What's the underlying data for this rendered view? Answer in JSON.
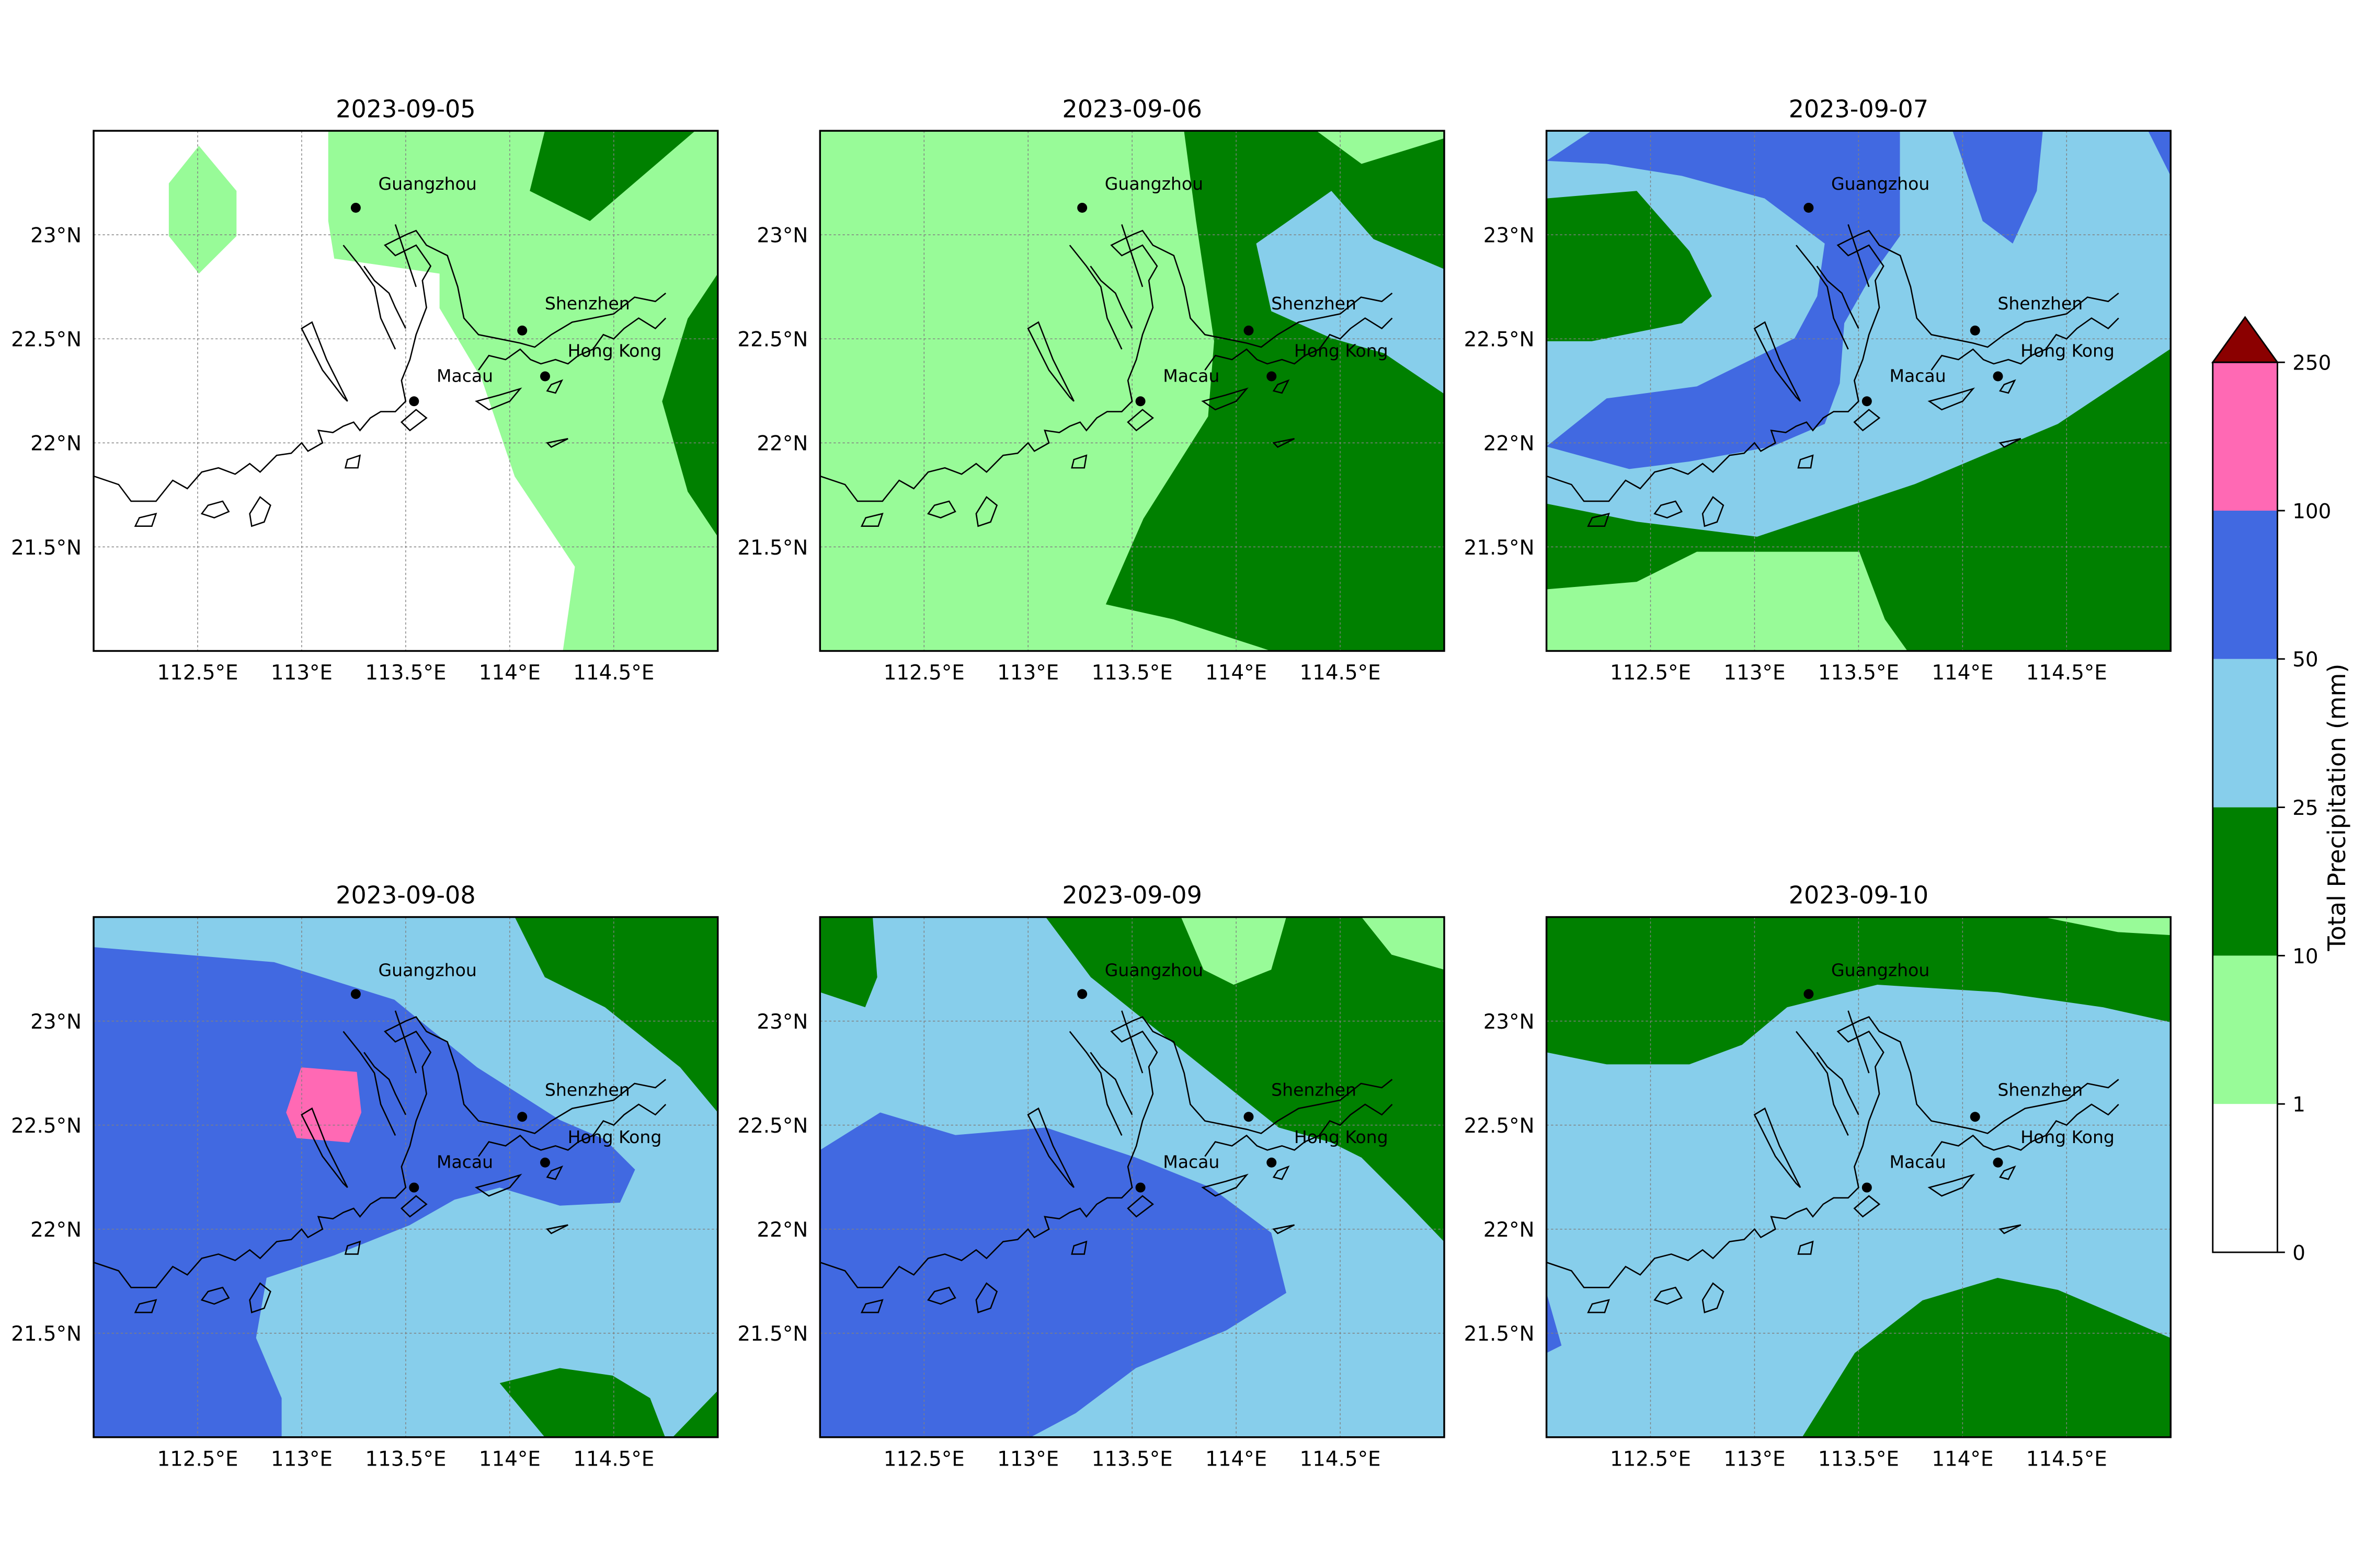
{
  "figure": {
    "colorbar_label": "Total Precipitation (mm)",
    "colorbar_levels": [
      "0",
      "1",
      "10",
      "25",
      "50",
      "100",
      "250"
    ],
    "colorbar_colors": [
      "#ffffff",
      "#98fb98",
      "#008000",
      "#87ceeb",
      "#4169e1",
      "#ff69b4"
    ],
    "colorbar_extend_color": "#8b0000"
  },
  "panels": [
    {
      "date": "2023-09-05"
    },
    {
      "date": "2023-09-06"
    },
    {
      "date": "2023-09-07"
    },
    {
      "date": "2023-09-08"
    },
    {
      "date": "2023-09-09"
    },
    {
      "date": "2023-09-10"
    }
  ],
  "axes": {
    "x_ticks": [
      "112.5°E",
      "113°E",
      "113.5°E",
      "114°E",
      "114.5°E"
    ],
    "y_ticks": [
      "23°N",
      "22.5°N",
      "22°N",
      "21.5°N"
    ]
  },
  "cities": [
    {
      "name": "Guangzhou"
    },
    {
      "name": "Shenzhen"
    },
    {
      "name": "Hong Kong"
    },
    {
      "name": "Macau"
    }
  ]
}
